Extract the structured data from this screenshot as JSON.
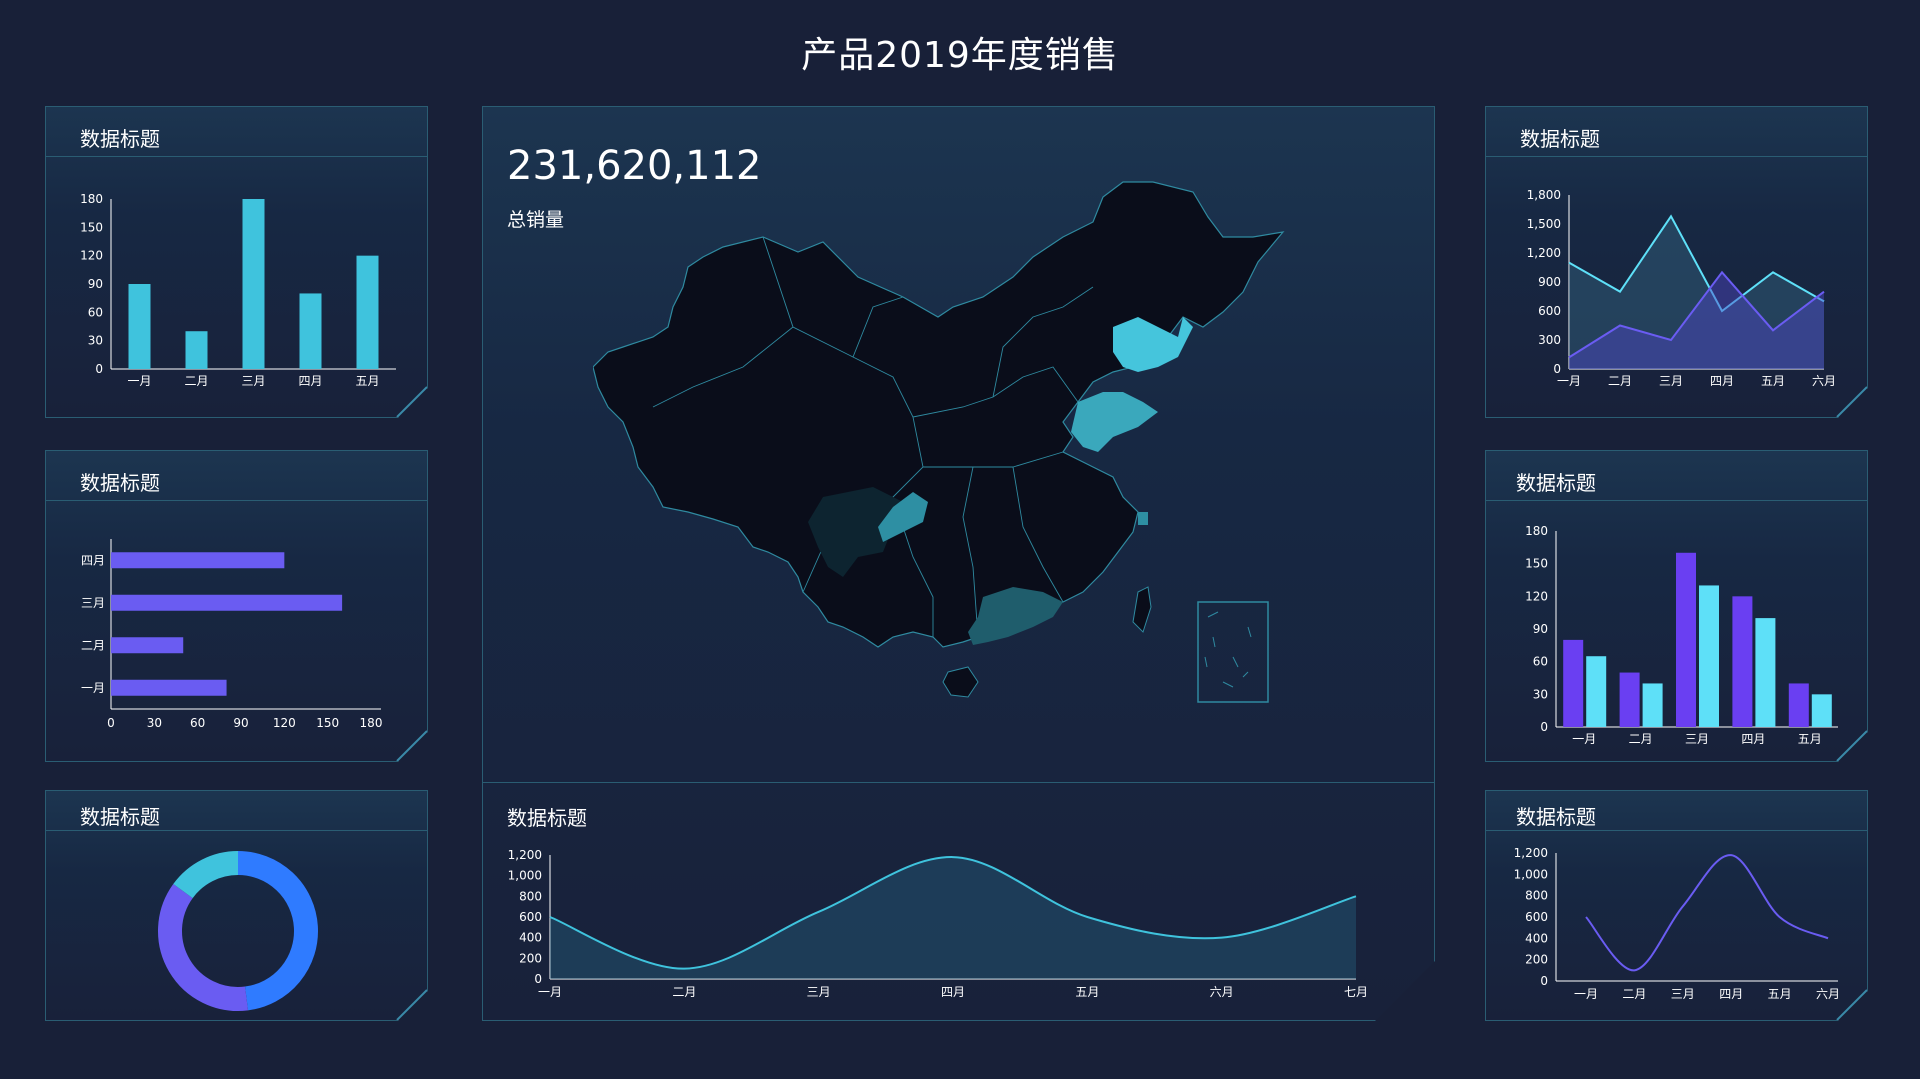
{
  "page": {
    "title": "产品2019年度销售"
  },
  "colors": {
    "cyan": "#3fc3dd",
    "purple": "#6a5cf2",
    "blue": "#2f7bff",
    "axis": "#ffffff",
    "map_land": "#0a0d1a",
    "map_border": "#2f8aa0"
  },
  "panels": {
    "top_left": {
      "title": "数据标题"
    },
    "mid_left": {
      "title": "数据标题"
    },
    "bottom_left": {
      "title": "数据标题"
    },
    "top_right": {
      "title": "数据标题"
    },
    "mid_right": {
      "title": "数据标题"
    },
    "bottom_right": {
      "title": "数据标题"
    },
    "center": {
      "total_value": "231,620,112",
      "total_label": "总销量",
      "chart_title": "数据标题"
    }
  },
  "chart_data": [
    {
      "id": "tl-bar",
      "type": "bar",
      "categories": [
        "一月",
        "二月",
        "三月",
        "四月",
        "五月"
      ],
      "values": [
        90,
        40,
        180,
        80,
        120
      ],
      "yticks": [
        0,
        30,
        60,
        90,
        120,
        150,
        180
      ],
      "ylim": [
        0,
        180
      ],
      "color": "#3fc3dd"
    },
    {
      "id": "ml-hbar",
      "type": "bar",
      "orientation": "horizontal",
      "categories": [
        "一月",
        "二月",
        "三月",
        "四月"
      ],
      "values": [
        80,
        50,
        160,
        120
      ],
      "xticks": [
        0,
        30,
        60,
        90,
        120,
        150,
        180
      ],
      "xlim": [
        0,
        180
      ],
      "color": "#6a5cf2"
    },
    {
      "id": "bl-donut",
      "type": "pie",
      "values": [
        48,
        37,
        15
      ],
      "colors": [
        "#2f7bff",
        "#6a5cf2",
        "#3fc3dd"
      ]
    },
    {
      "id": "tr-area",
      "type": "area",
      "categories": [
        "一月",
        "二月",
        "三月",
        "四月",
        "五月",
        "六月"
      ],
      "yticks": [
        "0",
        "300",
        "600",
        "900",
        "1,200",
        "1,500",
        "1,800"
      ],
      "ylim": [
        0,
        1800
      ],
      "series": [
        {
          "values": [
            1100,
            800,
            1580,
            600,
            1000,
            700
          ],
          "color": "#5ee0f8"
        },
        {
          "values": [
            120,
            450,
            300,
            1000,
            400,
            800
          ],
          "color": "#6a5cf2"
        }
      ]
    },
    {
      "id": "mr-group-bar",
      "type": "bar",
      "categories": [
        "一月",
        "二月",
        "三月",
        "四月",
        "五月"
      ],
      "yticks": [
        0,
        30,
        60,
        90,
        120,
        150,
        180
      ],
      "ylim": [
        0,
        180
      ],
      "series": [
        {
          "values": [
            80,
            50,
            160,
            120,
            40
          ],
          "color": "#6a3ff2"
        },
        {
          "values": [
            65,
            40,
            130,
            100,
            30
          ],
          "color": "#5ee0f8"
        }
      ]
    },
    {
      "id": "br-line",
      "type": "line",
      "categories": [
        "一月",
        "二月",
        "三月",
        "四月",
        "五月",
        "六月"
      ],
      "values": [
        600,
        100,
        700,
        1180,
        600,
        400
      ],
      "yticks": [
        "0",
        "200",
        "400",
        "600",
        "800",
        "1,000",
        "1,200"
      ],
      "ylim": [
        0,
        1200
      ],
      "color": "#6a5cf2"
    },
    {
      "id": "center-area",
      "type": "area",
      "categories": [
        "一月",
        "二月",
        "三月",
        "四月",
        "五月",
        "六月",
        "七月"
      ],
      "values": [
        600,
        100,
        650,
        1180,
        600,
        400,
        800
      ],
      "yticks": [
        "0",
        "200",
        "400",
        "600",
        "800",
        "1,000",
        "1,200"
      ],
      "ylim": [
        0,
        1200
      ],
      "color": "#3fc3dd"
    }
  ]
}
